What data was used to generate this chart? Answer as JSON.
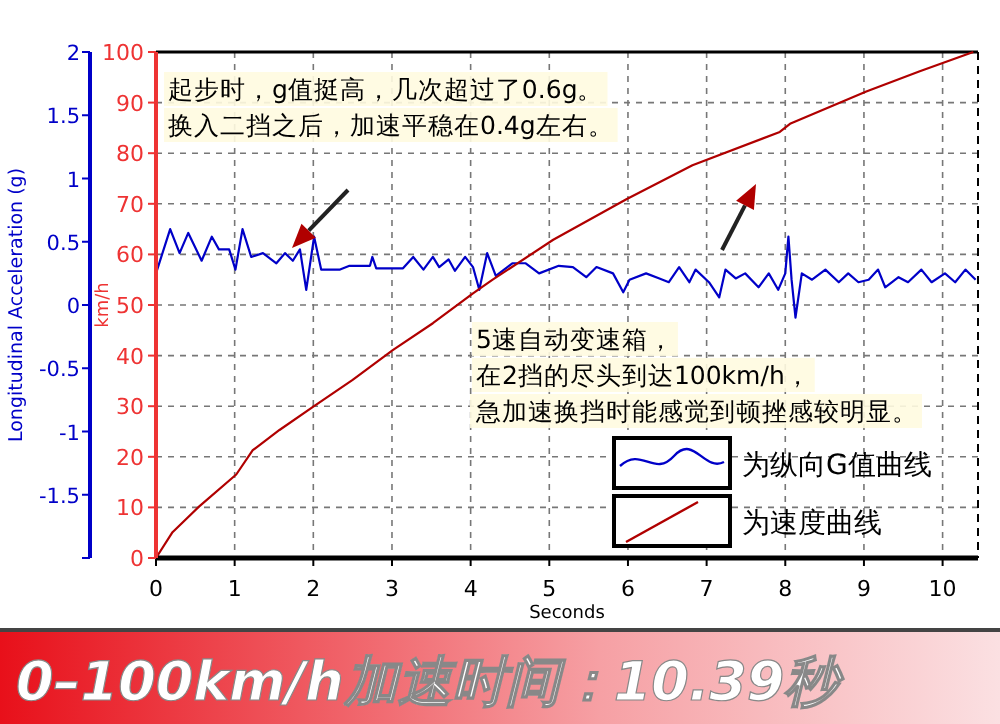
{
  "chart_data": {
    "type": "line",
    "title": "0–100km/h加速时间：10.39秒",
    "xlabel": "Seconds",
    "ylabel": "km/h",
    "y2label": "Longitudinal Acceleration (g)",
    "annotations": [
      "起步时，g值挺高，几次超过了0.6g。",
      "换入二挡之后，加速平稳在0.4g左右。",
      "5速自动变速箱，",
      "在2挡的尽头到达100km/h，",
      "急加速换挡时能感觉到顿挫感较明显。"
    ],
    "xlim": [
      0,
      10.45
    ],
    "xticks": [
      0,
      1,
      2,
      3,
      4,
      5,
      6,
      7,
      8,
      9,
      10
    ],
    "ylim": [
      0,
      100
    ],
    "yticks": [
      0,
      10,
      20,
      30,
      40,
      50,
      60,
      70,
      80,
      90,
      100
    ],
    "y2lim": [
      -2,
      2
    ],
    "y2ticks": [
      {
        "value": -2,
        "label": null
      },
      -1.5,
      -1,
      -0.5,
      0,
      0.5,
      1,
      1.5,
      2
    ],
    "grid": true,
    "legend": "bottom right",
    "marker": "none",
    "line_style": "solid",
    "series": [
      {
        "name": "为纵向G值曲线",
        "color": "#0000c8",
        "axis": "y2",
        "x": [
          0,
          0.18,
          0.3,
          0.41,
          0.58,
          0.71,
          0.8,
          0.93,
          1.01,
          1.1,
          1.21,
          1.36,
          1.53,
          1.64,
          1.74,
          1.83,
          1.91,
          2.01,
          2.1,
          2.34,
          2.46,
          2.72,
          2.75,
          2.8,
          3.14,
          3.27,
          3.4,
          3.52,
          3.6,
          3.72,
          3.8,
          3.93,
          4.03,
          4.11,
          4.21,
          4.32,
          4.53,
          4.7,
          4.87,
          5.12,
          5.3,
          5.47,
          5.6,
          5.81,
          5.94,
          6.02,
          6.23,
          6.4,
          6.52,
          6.65,
          6.78,
          6.86,
          7.03,
          7.16,
          7.24,
          7.37,
          7.49,
          7.66,
          7.79,
          7.91,
          8.0,
          8.04,
          8.08,
          8.13,
          8.21,
          8.34,
          8.51,
          8.68,
          8.8,
          8.93,
          9.06,
          9.18,
          9.27,
          9.44,
          9.56,
          9.73,
          9.86,
          10.03,
          10.16,
          10.29,
          10.42
        ],
        "values": [
          0.25,
          0.6,
          0.41,
          0.57,
          0.35,
          0.54,
          0.44,
          0.44,
          0.28,
          0.6,
          0.38,
          0.41,
          0.33,
          0.41,
          0.35,
          0.44,
          0.12,
          0.54,
          0.28,
          0.28,
          0.31,
          0.31,
          0.38,
          0.29,
          0.29,
          0.38,
          0.28,
          0.38,
          0.3,
          0.36,
          0.27,
          0.38,
          0.3,
          0.12,
          0.41,
          0.23,
          0.33,
          0.33,
          0.25,
          0.31,
          0.3,
          0.22,
          0.3,
          0.25,
          0.1,
          0.2,
          0.25,
          0.21,
          0.18,
          0.3,
          0.18,
          0.28,
          0.18,
          0.06,
          0.28,
          0.21,
          0.25,
          0.14,
          0.25,
          0.12,
          0.25,
          0.54,
          0.2,
          -0.1,
          0.25,
          0.2,
          0.28,
          0.18,
          0.25,
          0.18,
          0.2,
          0.28,
          0.14,
          0.22,
          0.18,
          0.28,
          0.18,
          0.25,
          0.18,
          0.28,
          0.2
        ]
      },
      {
        "name": "为速度曲线",
        "color": "#b00000",
        "x": [
          0,
          0.21,
          0.55,
          1.02,
          1.23,
          1.57,
          2.0,
          2.5,
          3.01,
          3.52,
          4.03,
          4.28,
          5.05,
          5.98,
          6.82,
          7.93,
          8.06,
          9.03,
          9.71,
          10.39
        ],
        "values": [
          0,
          5.1,
          10.2,
          16.5,
          21.3,
          25.3,
          29.9,
          35.2,
          41.1,
          46.4,
          52.3,
          55,
          62.9,
          70.9,
          77.6,
          84.2,
          85.8,
          92.2,
          96.2,
          100
        ]
      }
    ]
  }
}
